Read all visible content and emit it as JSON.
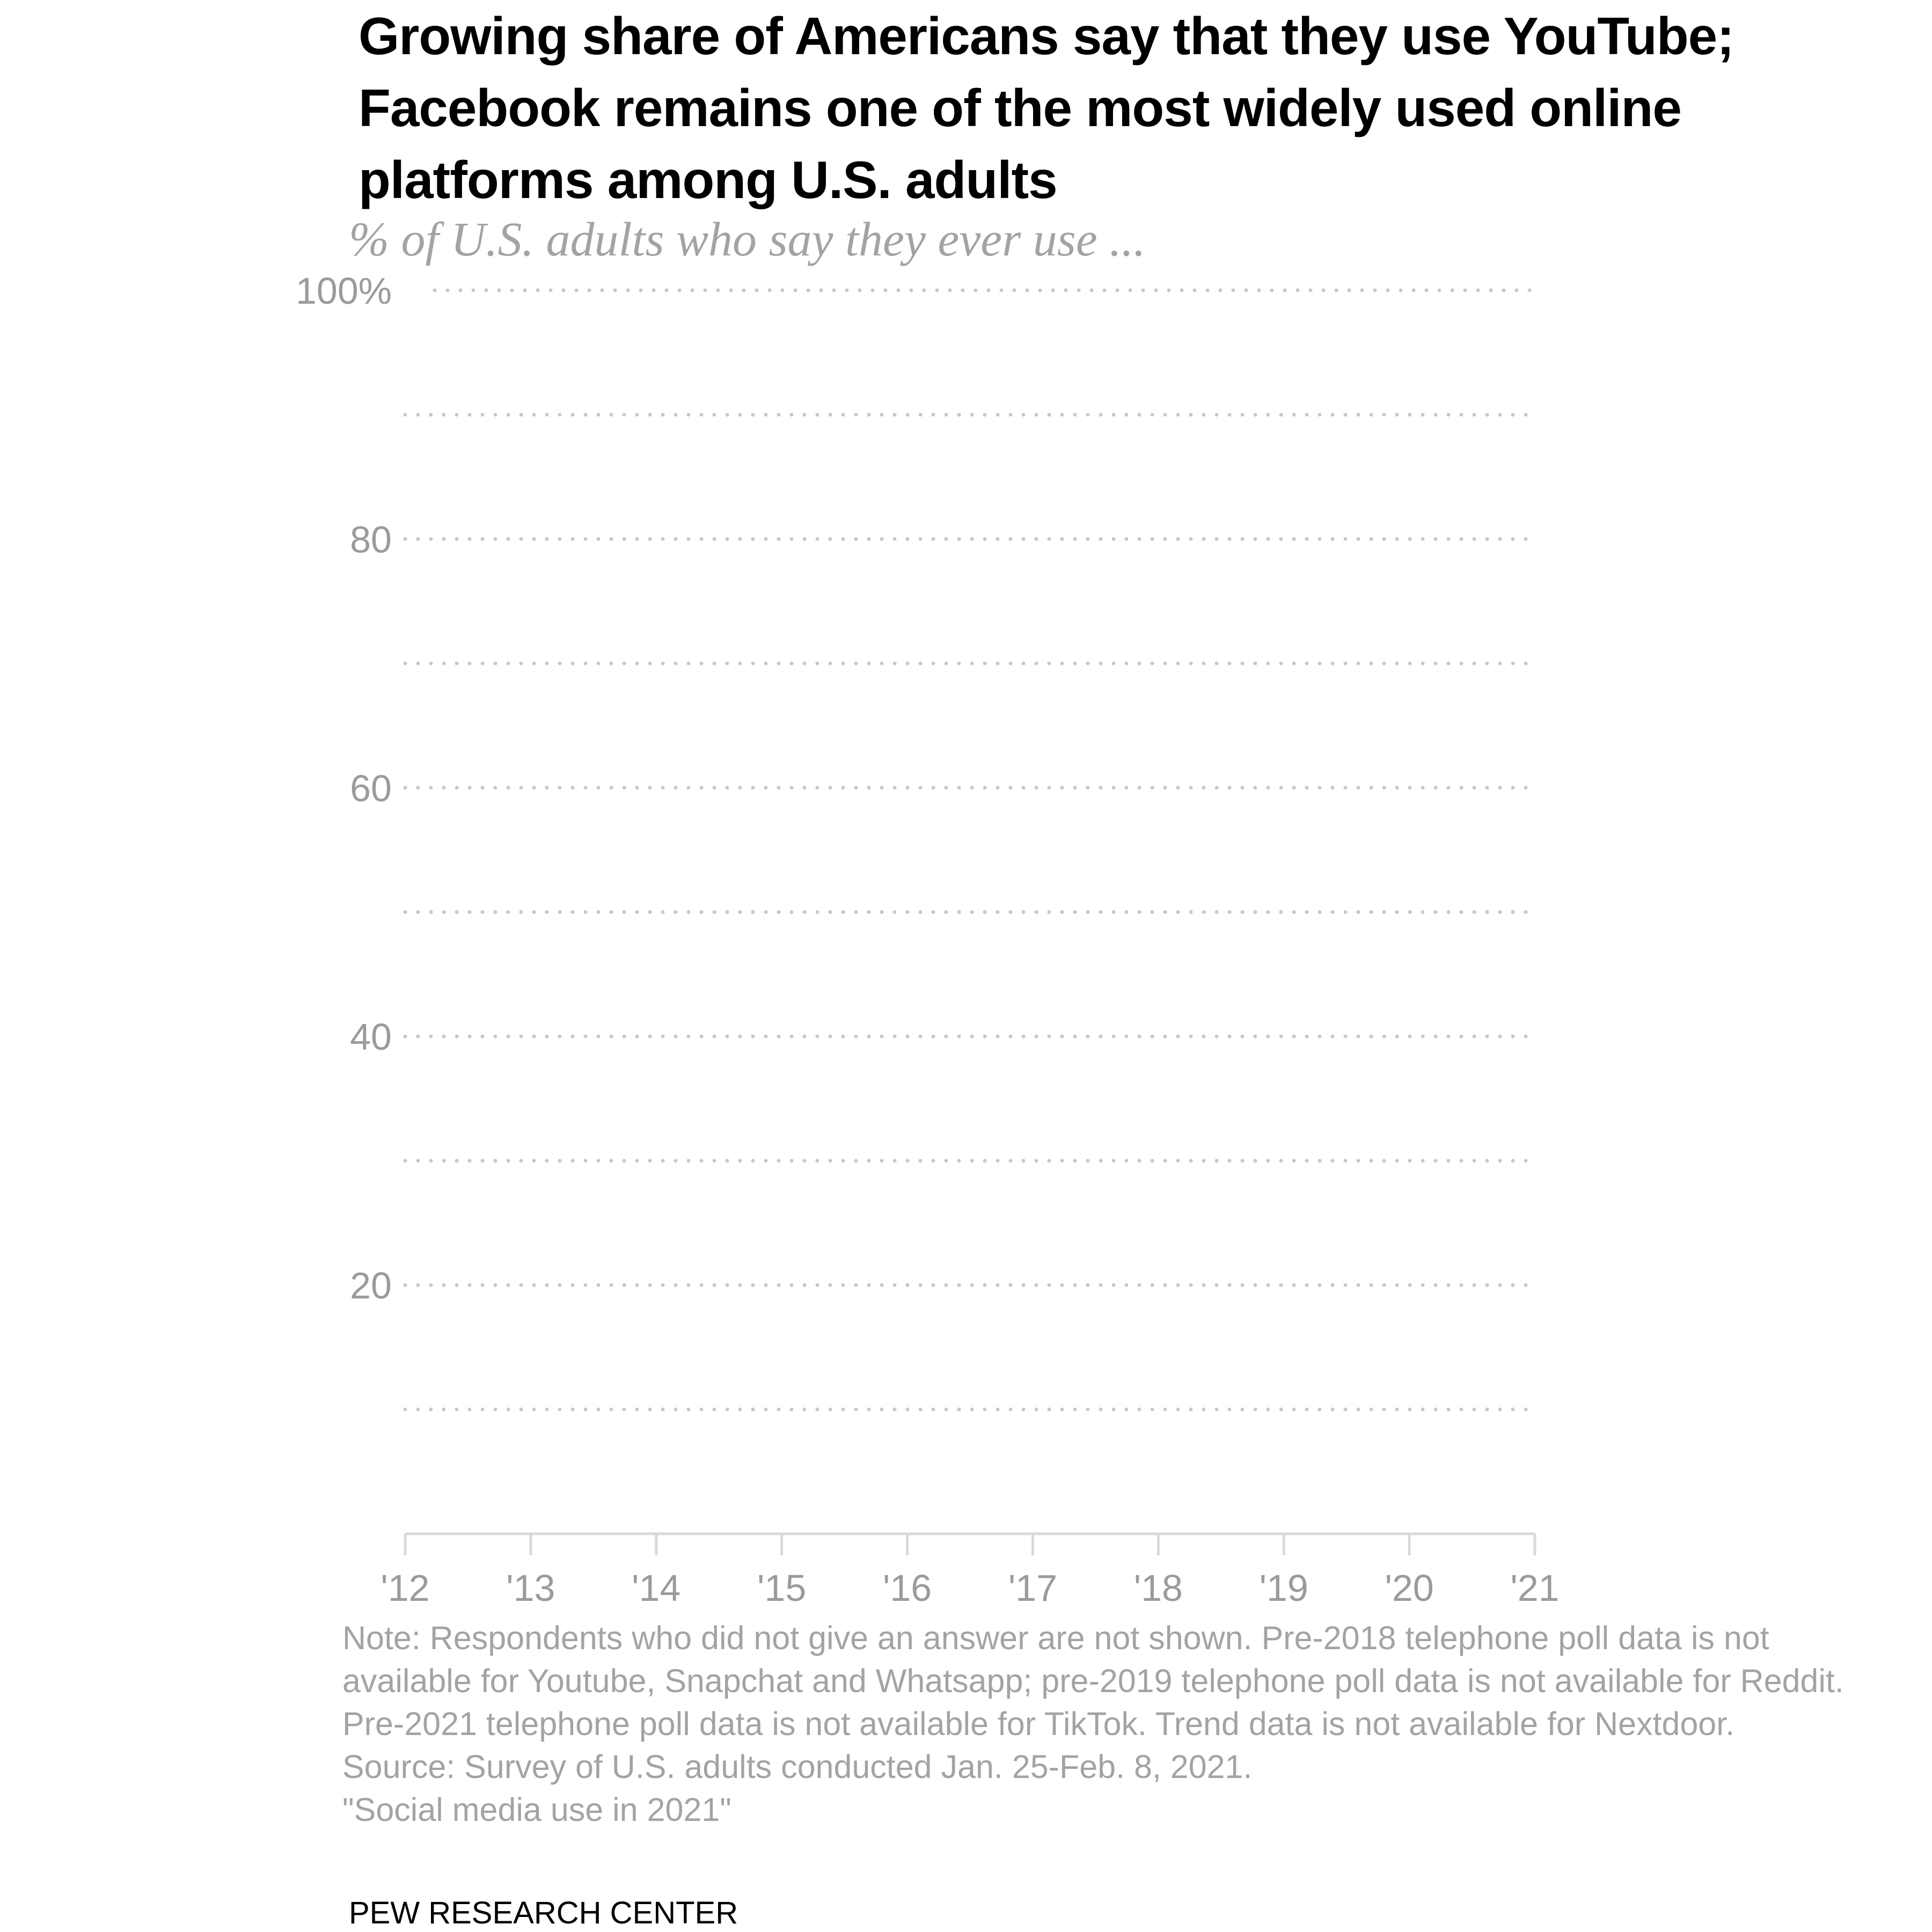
{
  "chart_data": {
    "type": "line",
    "title": "Growing share of Americans say that they use YouTube;\nFacebook remains one of the most widely used online\nplatforms among U.S. adults",
    "subtitle": "% of U.S. adults who say they ever use ...",
    "xlabel": "",
    "ylabel": "",
    "x_ticks": [
      {
        "value": 2012,
        "label": "'12"
      },
      {
        "value": 2013,
        "label": "'13"
      },
      {
        "value": 2014,
        "label": "'14"
      },
      {
        "value": 2015,
        "label": "'15"
      },
      {
        "value": 2016,
        "label": "'16"
      },
      {
        "value": 2017,
        "label": "'17"
      },
      {
        "value": 2018,
        "label": "'18"
      },
      {
        "value": 2019,
        "label": "'19"
      },
      {
        "value": 2020,
        "label": "'20"
      },
      {
        "value": 2021,
        "label": "'21"
      }
    ],
    "y_ticks": [
      {
        "value": 100,
        "label": "100%"
      },
      {
        "value": 80,
        "label": "80"
      },
      {
        "value": 60,
        "label": "60"
      },
      {
        "value": 40,
        "label": "40"
      },
      {
        "value": 20,
        "label": "20"
      }
    ],
    "gridlines": [
      10,
      20,
      30,
      40,
      50,
      60,
      70,
      80,
      90,
      100
    ],
    "xlim": [
      2012,
      2021
    ],
    "ylim": [
      0,
      100
    ],
    "grid": true,
    "series": [],
    "colors": {
      "gridline": "#c8c8c8",
      "axis": "#d9d9d9",
      "tick_text": "#9b9b9b"
    }
  },
  "footer": {
    "note": "Note: Respondents who did not give an answer are not shown. Pre-2018 telephone poll data is not available for Youtube, Snapchat and Whatsapp; pre-2019 telephone poll data is not available for Reddit. Pre-2021 telephone poll data is not available for TikTok. Trend data is not available for Nextdoor.",
    "source": "Source: Survey of U.S. adults conducted Jan. 25-Feb. 8, 2021.",
    "report": "\"Social media use in 2021\"",
    "brand": "PEW RESEARCH CENTER"
  }
}
